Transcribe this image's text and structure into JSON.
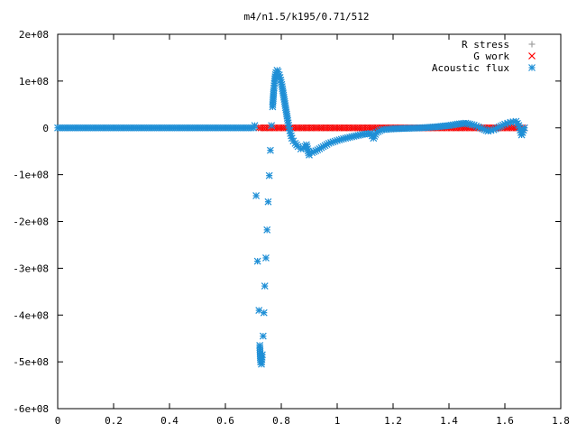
{
  "chart_data": {
    "type": "scatter",
    "title": "m4/n1.5/k195/0.71/512",
    "xlabel": "",
    "ylabel": "",
    "xlim": [
      0,
      1.8
    ],
    "ylim": [
      -600000000,
      200000000
    ],
    "x_ticks": [
      {
        "v": 0,
        "label": "0"
      },
      {
        "v": 0.2,
        "label": "0.2"
      },
      {
        "v": 0.4,
        "label": "0.4"
      },
      {
        "v": 0.6,
        "label": "0.6"
      },
      {
        "v": 0.8,
        "label": "0.8"
      },
      {
        "v": 1.0,
        "label": "1"
      },
      {
        "v": 1.2,
        "label": "1.2"
      },
      {
        "v": 1.4,
        "label": "1.4"
      },
      {
        "v": 1.6,
        "label": "1.6"
      },
      {
        "v": 1.8,
        "label": "1.8"
      }
    ],
    "y_ticks": [
      {
        "v": 200000000,
        "label": "2e+08"
      },
      {
        "v": 100000000,
        "label": "1e+08"
      },
      {
        "v": 0,
        "label": "0"
      },
      {
        "v": -100000000,
        "label": "-1e+08"
      },
      {
        "v": -200000000,
        "label": "-2e+08"
      },
      {
        "v": -300000000,
        "label": "-3e+08"
      },
      {
        "v": -400000000,
        "label": "-4e+08"
      },
      {
        "v": -500000000,
        "label": "-5e+08"
      },
      {
        "v": -600000000,
        "label": "-6e+08"
      }
    ],
    "grid": false,
    "legend_position": "top-right",
    "series": [
      {
        "name": "R stress",
        "marker": "plus",
        "color": "#a0a0a0",
        "points": [
          [
            0.71,
            0
          ],
          [
            0.8,
            0
          ],
          [
            0.9,
            0
          ],
          [
            1.0,
            0
          ],
          [
            1.1,
            0
          ],
          [
            1.2,
            0
          ],
          [
            1.3,
            0
          ],
          [
            1.4,
            0
          ],
          [
            1.5,
            0
          ],
          [
            1.6,
            0
          ],
          [
            1.67,
            0
          ]
        ]
      },
      {
        "name": "G work",
        "marker": "cross",
        "color": "#ff0000",
        "points": [
          [
            0.72,
            0
          ],
          [
            0.76,
            0
          ],
          [
            0.8,
            0
          ],
          [
            0.84,
            0
          ],
          [
            0.88,
            0
          ],
          [
            0.92,
            0
          ],
          [
            0.96,
            0
          ],
          [
            1.0,
            0
          ],
          [
            1.04,
            0
          ],
          [
            1.08,
            0
          ],
          [
            1.12,
            0
          ],
          [
            1.16,
            0
          ],
          [
            1.2,
            0
          ],
          [
            1.24,
            0
          ],
          [
            1.28,
            0
          ],
          [
            1.32,
            0
          ],
          [
            1.36,
            0
          ],
          [
            1.4,
            0
          ],
          [
            1.44,
            0
          ],
          [
            1.48,
            0
          ],
          [
            1.52,
            0
          ],
          [
            1.56,
            0
          ],
          [
            1.6,
            0
          ],
          [
            1.64,
            0
          ],
          [
            1.67,
            0
          ]
        ]
      },
      {
        "name": "Acoustic flux",
        "marker": "star",
        "color": "#1f8fd6",
        "points": [
          [
            0.0,
            0
          ],
          [
            0.1,
            0
          ],
          [
            0.2,
            0
          ],
          [
            0.3,
            0
          ],
          [
            0.4,
            0
          ],
          [
            0.5,
            0
          ],
          [
            0.6,
            0
          ],
          [
            0.7,
            0
          ],
          [
            0.705,
            5000000
          ],
          [
            0.71,
            -145000000
          ],
          [
            0.715,
            -285000000
          ],
          [
            0.72,
            -390000000
          ],
          [
            0.723,
            -465000000
          ],
          [
            0.726,
            -500000000
          ],
          [
            0.729,
            -505000000
          ],
          [
            0.732,
            -485000000
          ],
          [
            0.735,
            -445000000
          ],
          [
            0.738,
            -395000000
          ],
          [
            0.741,
            -338000000
          ],
          [
            0.745,
            -278000000
          ],
          [
            0.749,
            -218000000
          ],
          [
            0.753,
            -158000000
          ],
          [
            0.757,
            -102000000
          ],
          [
            0.761,
            -48000000
          ],
          [
            0.765,
            5000000
          ],
          [
            0.769,
            45000000
          ],
          [
            0.773,
            80000000
          ],
          [
            0.777,
            105000000
          ],
          [
            0.781,
            118000000
          ],
          [
            0.785,
            123000000
          ],
          [
            0.789,
            120000000
          ],
          [
            0.793,
            113000000
          ],
          [
            0.798,
            102000000
          ],
          [
            0.803,
            88000000
          ],
          [
            0.808,
            70000000
          ],
          [
            0.813,
            52000000
          ],
          [
            0.818,
            34000000
          ],
          [
            0.823,
            16000000
          ],
          [
            0.828,
            0
          ],
          [
            0.833,
            -12000000
          ],
          [
            0.838,
            -22000000
          ],
          [
            0.843,
            -28000000
          ],
          [
            0.85,
            -33000000
          ],
          [
            0.86,
            -40000000
          ],
          [
            0.87,
            -45000000
          ],
          [
            0.88,
            -43000000
          ],
          [
            0.89,
            -36000000
          ],
          [
            0.9,
            -58000000
          ],
          [
            0.91,
            -53000000
          ],
          [
            0.93,
            -47000000
          ],
          [
            0.95,
            -40000000
          ],
          [
            0.97,
            -33000000
          ],
          [
            1.0,
            -27000000
          ],
          [
            1.03,
            -22000000
          ],
          [
            1.06,
            -18000000
          ],
          [
            1.09,
            -14000000
          ],
          [
            1.12,
            -12000000
          ],
          [
            1.13,
            -22000000
          ],
          [
            1.14,
            -10000000
          ],
          [
            1.16,
            -4000000
          ],
          [
            1.2,
            -2000000
          ],
          [
            1.25,
            -1000000
          ],
          [
            1.3,
            0
          ],
          [
            1.35,
            2000000
          ],
          [
            1.4,
            5000000
          ],
          [
            1.43,
            8000000
          ],
          [
            1.46,
            10000000
          ],
          [
            1.49,
            6000000
          ],
          [
            1.52,
            -2000000
          ],
          [
            1.54,
            -7000000
          ],
          [
            1.56,
            -4000000
          ],
          [
            1.58,
            2000000
          ],
          [
            1.6,
            8000000
          ],
          [
            1.62,
            12000000
          ],
          [
            1.64,
            14000000
          ],
          [
            1.65,
            5000000
          ],
          [
            1.66,
            -15000000
          ],
          [
            1.67,
            0
          ]
        ]
      }
    ]
  }
}
